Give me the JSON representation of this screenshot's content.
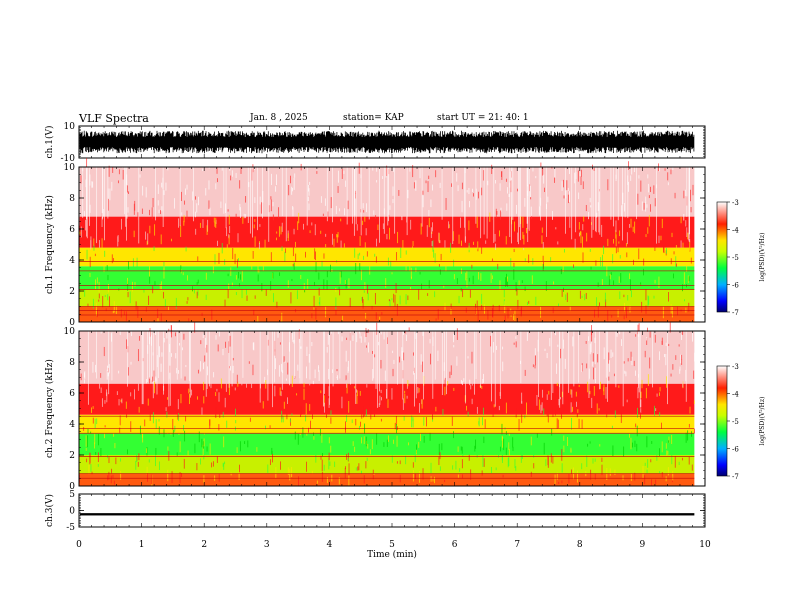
{
  "header": {
    "title": "VLF Spectra",
    "date": "Jan. 8 , 2025",
    "station": "station= KAP",
    "start": "start UT = 21: 40: 1"
  },
  "chart_data": [
    {
      "type": "line",
      "panel": "waveform-ch1",
      "ylabel": "ch.1(V)",
      "ylim": [
        -10,
        10
      ],
      "yticks": [
        "10",
        "-10"
      ],
      "xlim": [
        0,
        10
      ],
      "data_end_min": 9.83,
      "envelope": {
        "min": -7,
        "max": 7
      }
    },
    {
      "type": "heatmap",
      "panel": "spectrogram-ch1",
      "ylabel": "ch.1 Frequency (kHz)",
      "ylim": [
        0,
        10
      ],
      "yticks": [
        "0",
        "2",
        "4",
        "6",
        "8",
        "10"
      ],
      "xlim": [
        0,
        10
      ],
      "data_end_min": 9.83,
      "bands_khz": [
        {
          "from": 0.0,
          "to": 1.0,
          "level": "orange-red"
        },
        {
          "from": 1.0,
          "to": 2.1,
          "level": "yellow-green"
        },
        {
          "from": 2.1,
          "to": 3.6,
          "level": "green"
        },
        {
          "from": 3.6,
          "to": 4.8,
          "level": "yellow"
        },
        {
          "from": 4.8,
          "to": 6.8,
          "level": "red"
        },
        {
          "from": 6.8,
          "to": 10.0,
          "level": "light-red"
        }
      ],
      "lines_khz": [
        0.45,
        0.75,
        1.0,
        2.1,
        2.35,
        3.3,
        3.9
      ]
    },
    {
      "type": "heatmap",
      "panel": "spectrogram-ch2",
      "ylabel": "ch.2 Frequency (kHz)",
      "ylim": [
        0,
        10
      ],
      "yticks": [
        "0",
        "2",
        "4",
        "6",
        "8",
        "10"
      ],
      "xlim": [
        0,
        10
      ],
      "data_end_min": 9.83,
      "bands_khz": [
        {
          "from": 0.0,
          "to": 0.8,
          "level": "orange-red"
        },
        {
          "from": 0.8,
          "to": 2.0,
          "level": "yellow-green"
        },
        {
          "from": 2.0,
          "to": 3.4,
          "level": "green"
        },
        {
          "from": 3.4,
          "to": 4.6,
          "level": "yellow"
        },
        {
          "from": 4.6,
          "to": 6.6,
          "level": "red"
        },
        {
          "from": 6.6,
          "to": 10.0,
          "level": "light-red"
        }
      ],
      "lines_khz": [
        0.5,
        0.8,
        1.9,
        3.4,
        3.7,
        4.5
      ]
    },
    {
      "type": "line",
      "panel": "waveform-ch3",
      "ylabel": "ch.3(V)",
      "ylim": [
        -5,
        5
      ],
      "yticks": [
        "5",
        "0",
        "-5"
      ],
      "xlim": [
        0,
        10
      ],
      "data_end_min": 9.83,
      "envelope": {
        "min": -1.5,
        "max": -0.8
      }
    }
  ],
  "xaxis": {
    "label": "Time (min)",
    "ticks": [
      "0",
      "1",
      "2",
      "3",
      "4",
      "5",
      "6",
      "7",
      "8",
      "9",
      "10"
    ]
  },
  "colorbars": [
    {
      "label": "log(PSD)(V²/Hz)",
      "ticks": [
        "-3",
        "-4",
        "-5",
        "-6",
        "-7"
      ]
    },
    {
      "label": "log(PSD)(V²/Hz)",
      "ticks": [
        "-3",
        "-4",
        "-5",
        "-6",
        "-7"
      ]
    }
  ],
  "colors": {
    "white": "#ffffff",
    "light-red": "#f8c8c8",
    "red": "#ff1a1a",
    "orange-red": "#ff5a10",
    "yellow": "#ffe600",
    "yellow-green": "#c8f000",
    "green": "#33ff33"
  }
}
